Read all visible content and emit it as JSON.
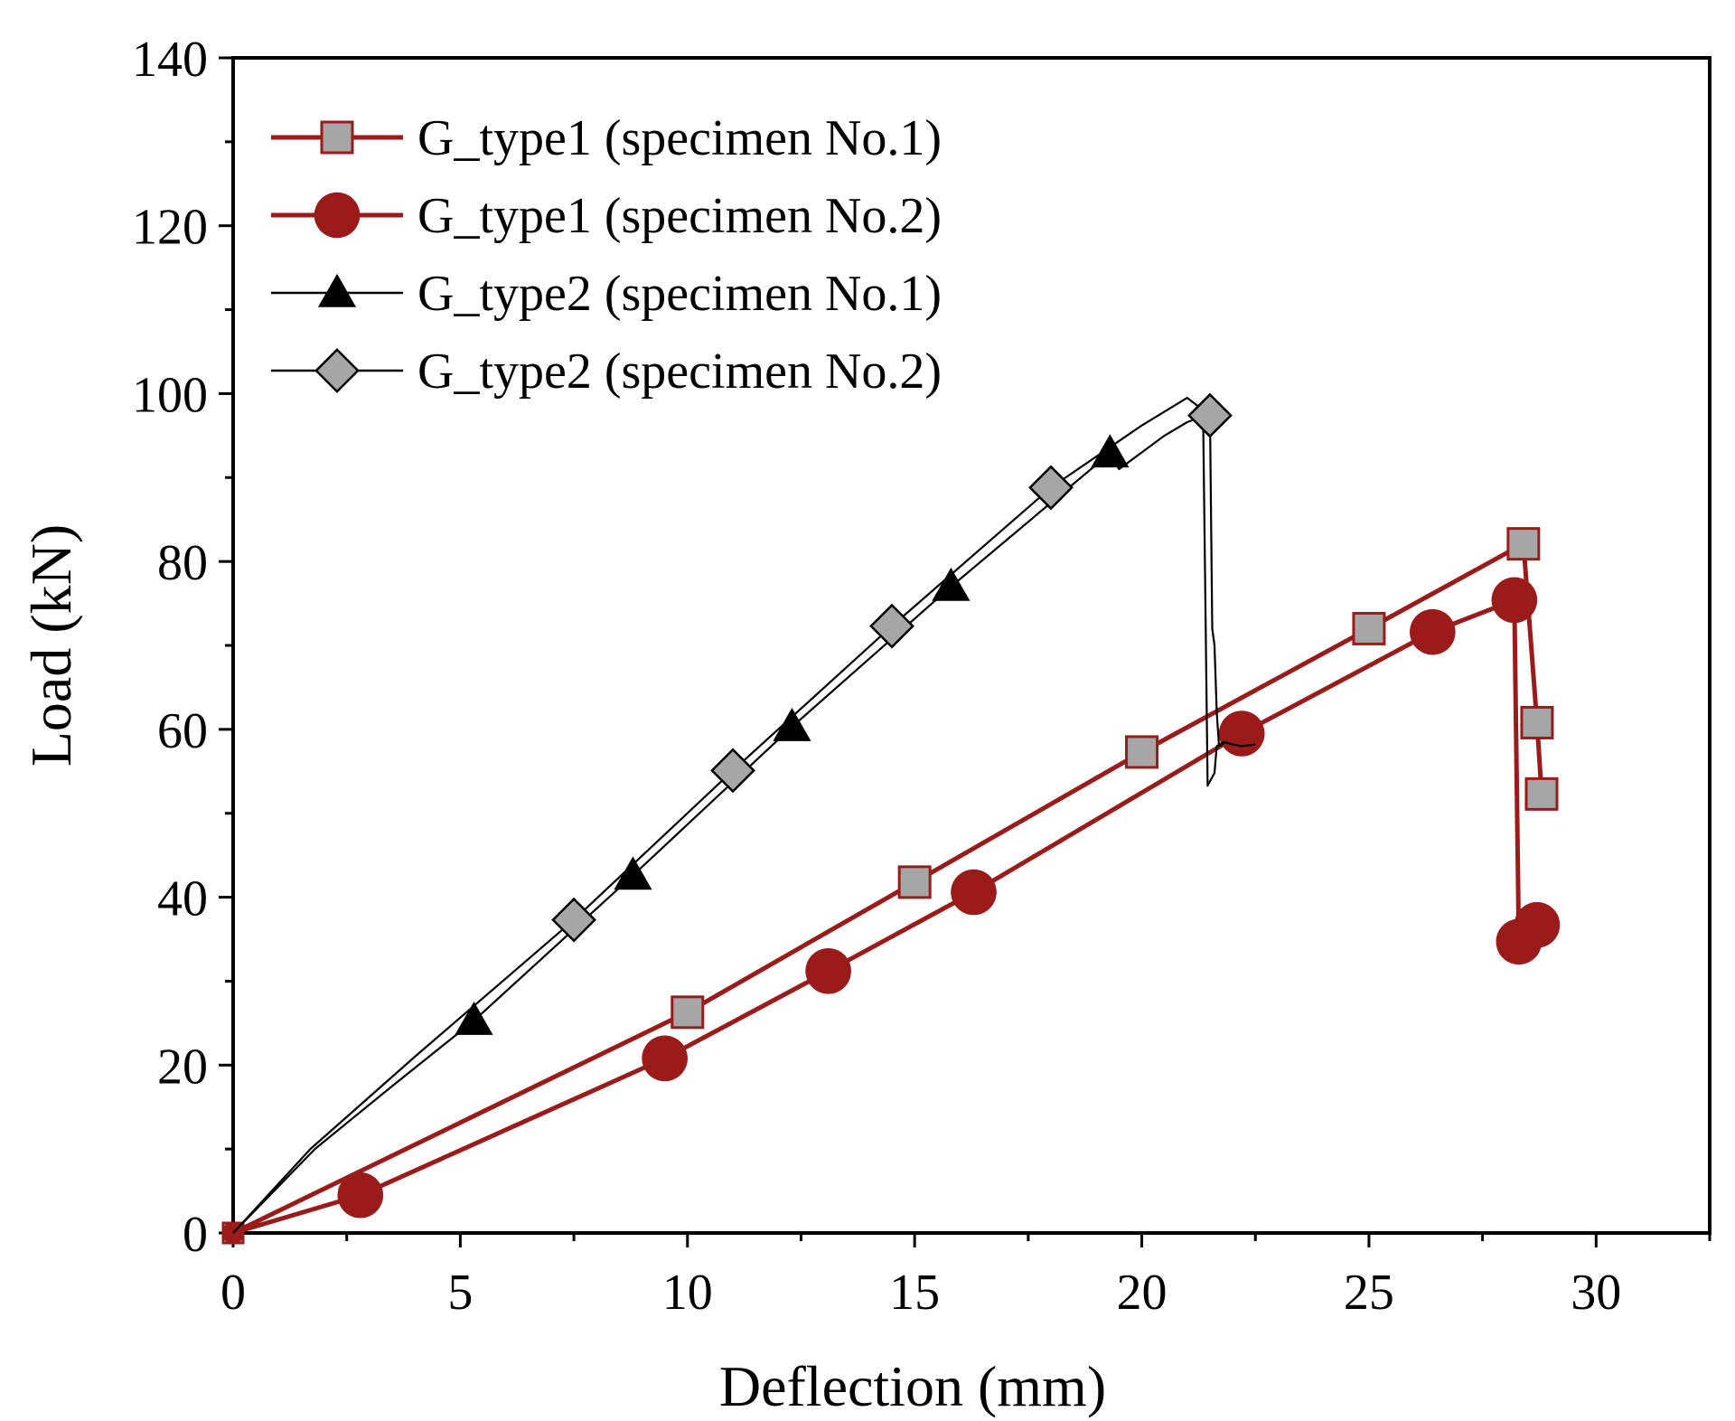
{
  "chart_data": {
    "type": "line",
    "xlabel": "Deflection (mm)",
    "ylabel": "Load (kN)",
    "xlim": [
      0,
      32.5
    ],
    "ylim": [
      0,
      140
    ],
    "xticks": [
      0,
      5,
      10,
      15,
      20,
      25,
      30
    ],
    "yticks": [
      0,
      20,
      40,
      60,
      80,
      100,
      120,
      140
    ],
    "grid": false,
    "legend_position": "top-left",
    "colors": {
      "type1": "#9b1b1b",
      "type2": "#000000",
      "marker_gray": "#a6a6a6"
    },
    "series": [
      {
        "name": "G_type1 (specimen No.1)",
        "marker": "square",
        "line": "thick",
        "x": [
          0,
          10,
          15,
          20,
          25,
          28.4,
          28.7,
          28.8
        ],
        "y": [
          0,
          26.3,
          41.8,
          57.3,
          72.0,
          82.1,
          60.8,
          52.3
        ]
      },
      {
        "name": "G_type1 (specimen No.2)",
        "marker": "circle",
        "line": "thick",
        "x": [
          0,
          2.8,
          9.5,
          13.1,
          16.3,
          22.2,
          26.4,
          28.2,
          28.3,
          28.7
        ],
        "y": [
          0,
          4.5,
          20.8,
          31.2,
          40.6,
          59.5,
          71.6,
          75.4,
          34.7,
          36.7
        ]
      },
      {
        "name": "G_type2 (specimen No.1)",
        "marker": "triangle",
        "line": "thin",
        "x": [
          0,
          1.8,
          3.5,
          5.3,
          8.8,
          12.3,
          15.8,
          19.3,
          19.5,
          20.5,
          21.0,
          21.35,
          21.45,
          21.6,
          21.65,
          21.8,
          22.0,
          22.2,
          22.5
        ],
        "y": [
          0,
          10,
          17.5,
          25.3,
          42.6,
          60.3,
          77.0,
          92.9,
          91.0,
          95.0,
          96.6,
          97.3,
          53.3,
          54.8,
          58.0,
          58.5,
          58.2,
          58.0,
          58.2
        ],
        "markers_x": [
          5.3,
          8.8,
          12.3,
          15.8,
          19.3
        ],
        "markers_y": [
          25.3,
          42.6,
          60.3,
          77.0,
          92.9
        ]
      },
      {
        "name": "G_type2 (specimen No.2)",
        "marker": "diamond",
        "line": "thin",
        "x": [
          0,
          1.7,
          4.0,
          7.5,
          11.0,
          14.5,
          18.0,
          20.0,
          21.0,
          21.5,
          21.55,
          21.6,
          21.65,
          21.7,
          21.85
        ],
        "y": [
          0,
          10,
          21.0,
          37.3,
          55.1,
          72.3,
          88.8,
          96.2,
          99.5,
          97.4,
          72.0,
          70.0,
          62.0,
          58.0,
          58.5
        ],
        "markers_x": [
          7.5,
          11.0,
          14.5,
          18.0,
          21.5
        ],
        "markers_y": [
          37.3,
          55.1,
          72.3,
          88.8,
          97.4
        ]
      }
    ]
  }
}
